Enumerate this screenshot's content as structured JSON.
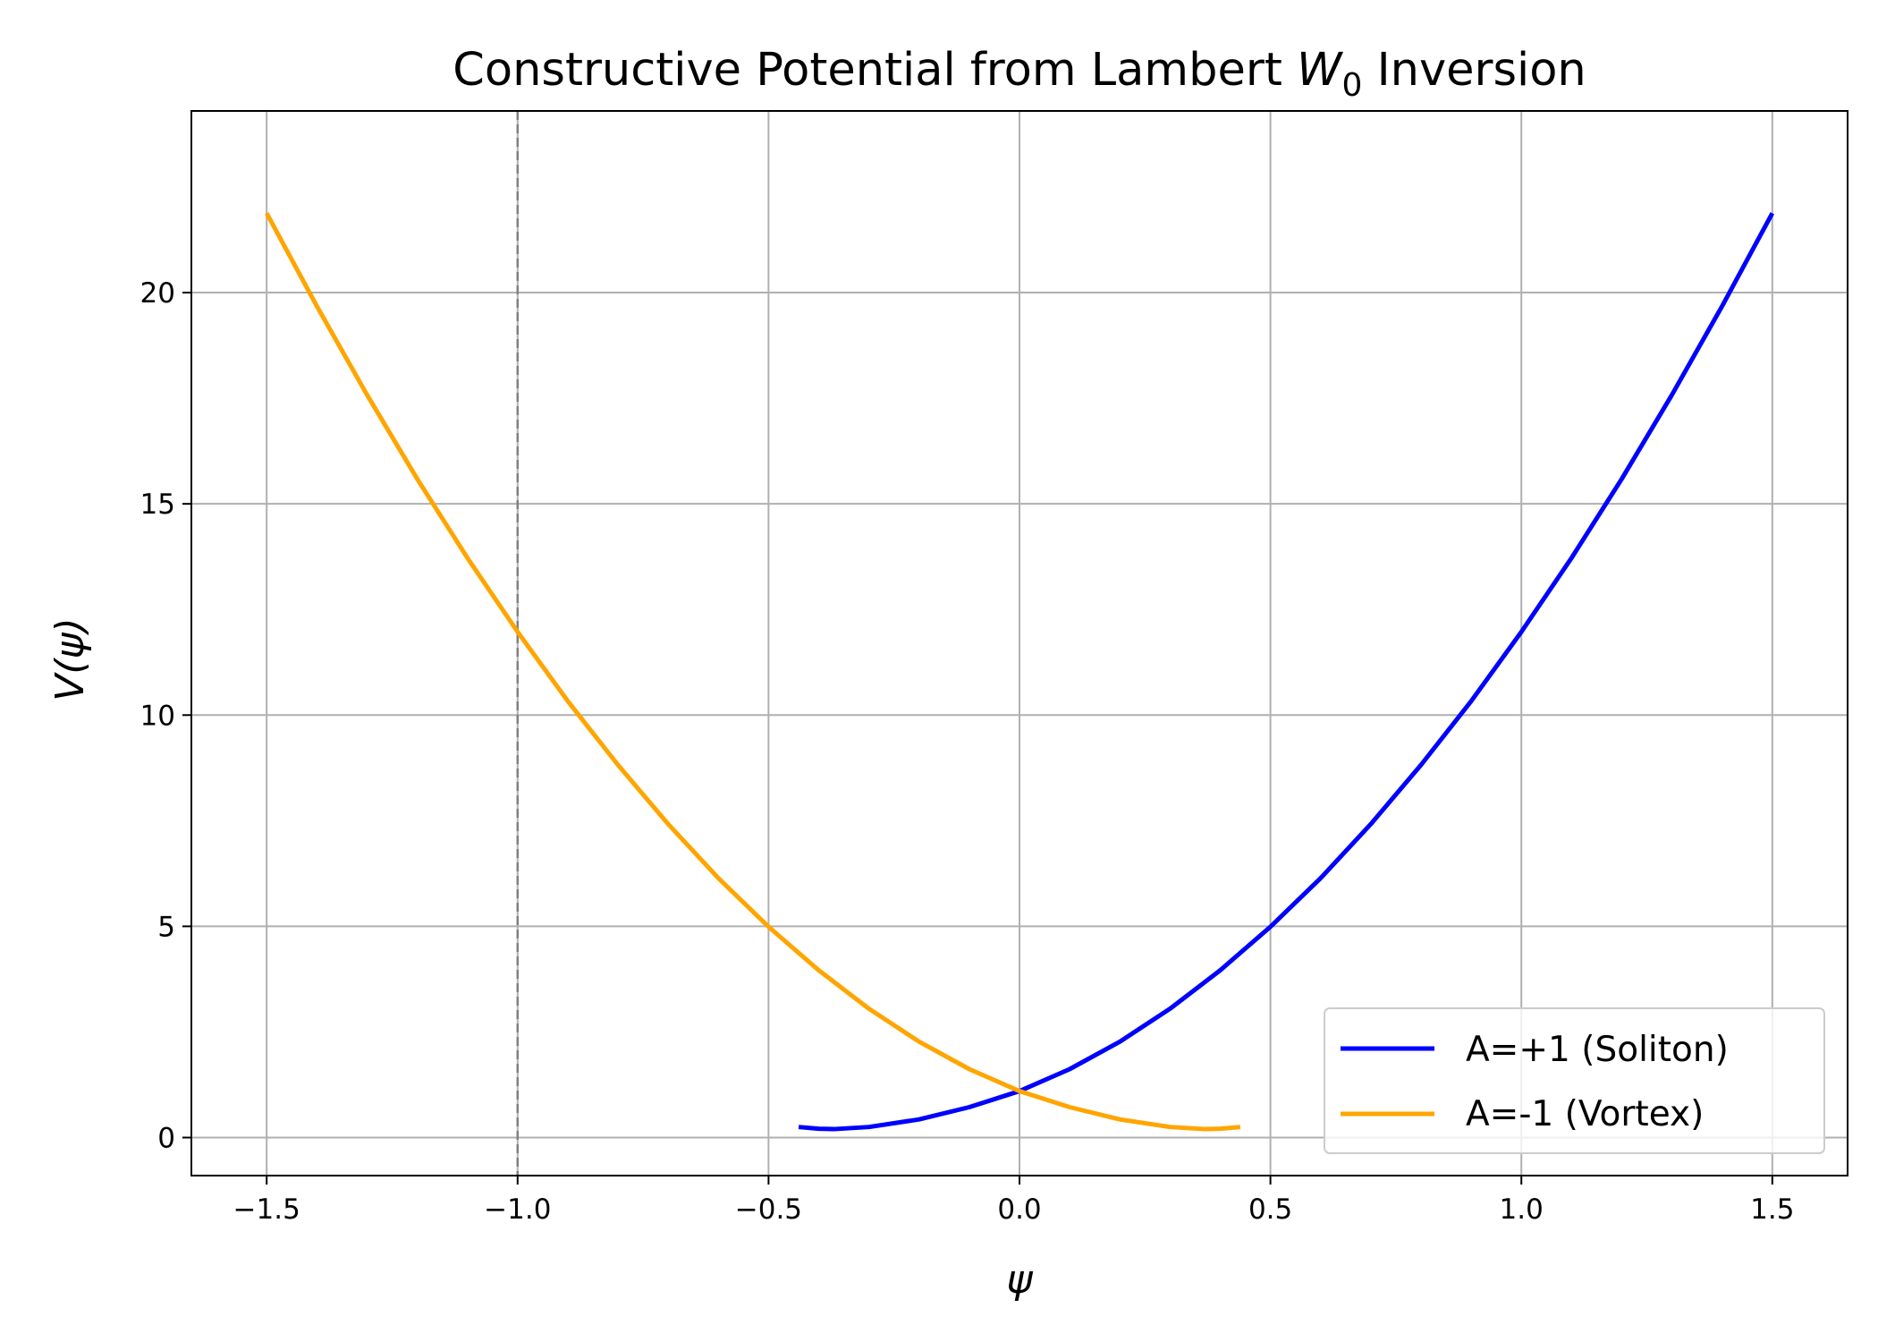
{
  "chart_data": {
    "type": "line",
    "title_parts": {
      "prefix": "Constructive Potential from Lambert ",
      "w": "W",
      "sub": "0",
      "suffix": " Inversion"
    },
    "xlabel": "ψ",
    "ylabel": "V(ψ)",
    "xlim": [
      -1.65,
      1.65
    ],
    "ylim": [
      -0.9,
      24.3
    ],
    "xticks": [
      -1.5,
      -1.0,
      -0.5,
      0.0,
      0.5,
      1.0,
      1.5
    ],
    "xtick_labels": [
      "−1.5",
      "−1.0",
      "−0.5",
      "0.0",
      "0.5",
      "1.0",
      "1.5"
    ],
    "yticks": [
      0,
      5,
      10,
      15,
      20
    ],
    "ytick_labels": [
      "0",
      "5",
      "10",
      "15",
      "20"
    ],
    "grid": true,
    "vline": {
      "x": -1.0,
      "style": "dashed",
      "color": "#808080"
    },
    "legend_position": "lower-right",
    "series": [
      {
        "name": "A=+1 (Soliton)",
        "color": "#0000ff",
        "x": [
          -0.44,
          -0.4,
          -0.37,
          -0.3,
          -0.2,
          -0.1,
          0.0,
          0.1,
          0.2,
          0.3,
          0.4,
          0.5,
          0.6,
          0.7,
          0.8,
          0.9,
          1.0,
          1.1,
          1.2,
          1.3,
          1.4,
          1.5
        ],
        "y": [
          0.25,
          0.21,
          0.2,
          0.25,
          0.43,
          0.72,
          1.1,
          1.62,
          2.27,
          3.05,
          3.96,
          4.99,
          6.14,
          7.42,
          8.82,
          10.33,
          11.97,
          13.72,
          15.59,
          17.58,
          19.68,
          21.88
        ]
      },
      {
        "name": "A=-1 (Vortex)",
        "color": "#ffa500",
        "x": [
          -1.5,
          -1.4,
          -1.3,
          -1.2,
          -1.1,
          -1.0,
          -0.9,
          -0.8,
          -0.7,
          -0.6,
          -0.5,
          -0.4,
          -0.3,
          -0.2,
          -0.1,
          0.0,
          0.1,
          0.2,
          0.3,
          0.37,
          0.4,
          0.44
        ],
        "y": [
          21.88,
          19.68,
          17.58,
          15.59,
          13.72,
          11.97,
          10.33,
          8.82,
          7.42,
          6.14,
          4.99,
          3.96,
          3.05,
          2.27,
          1.62,
          1.1,
          0.72,
          0.43,
          0.25,
          0.2,
          0.21,
          0.25
        ]
      }
    ]
  }
}
